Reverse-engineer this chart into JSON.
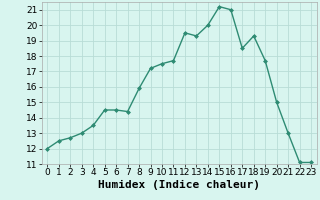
{
  "x": [
    0,
    1,
    2,
    3,
    4,
    5,
    6,
    7,
    8,
    9,
    10,
    11,
    12,
    13,
    14,
    15,
    16,
    17,
    18,
    19,
    20,
    21,
    22,
    23
  ],
  "y": [
    12,
    12.5,
    12.7,
    13,
    13.5,
    14.5,
    14.5,
    14.4,
    15.9,
    17.2,
    17.5,
    17.7,
    19.5,
    19.3,
    20.0,
    21.2,
    21.0,
    18.5,
    19.3,
    17.7,
    15.0,
    13.0,
    11.1,
    11.1
  ],
  "xlabel": "Humidex (Indice chaleur)",
  "xlim": [
    -0.5,
    23.5
  ],
  "ylim": [
    11,
    21.5
  ],
  "yticks": [
    11,
    12,
    13,
    14,
    15,
    16,
    17,
    18,
    19,
    20,
    21
  ],
  "xticks": [
    0,
    1,
    2,
    3,
    4,
    5,
    6,
    7,
    8,
    9,
    10,
    11,
    12,
    13,
    14,
    15,
    16,
    17,
    18,
    19,
    20,
    21,
    22,
    23
  ],
  "line_color": "#2e8b73",
  "marker": "D",
  "marker_size": 2,
  "linewidth": 1.0,
  "bg_color": "#d8f5ef",
  "grid_color": "#b8ddd6",
  "xlabel_fontsize": 8,
  "tick_fontsize": 6.5
}
